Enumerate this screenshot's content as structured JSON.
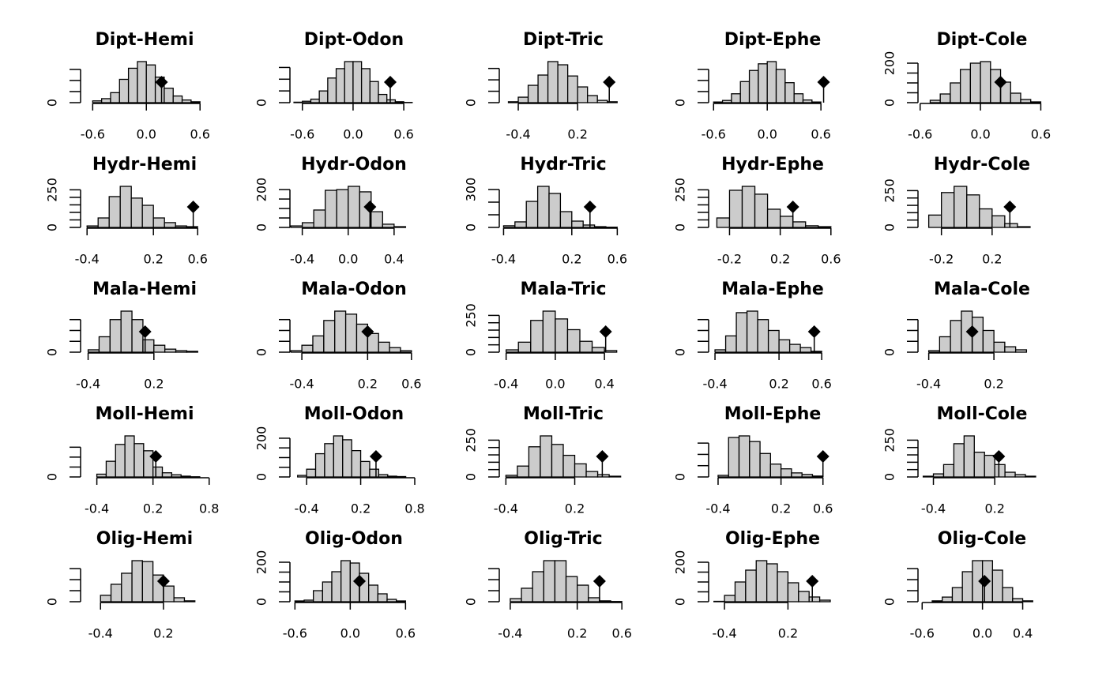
{
  "chart_data": [
    {
      "type": "histogram",
      "title": "Dipt-Hemi",
      "bins": [
        -0.6,
        -0.5,
        -0.4,
        -0.3,
        -0.2,
        -0.1,
        0,
        0.1,
        0.2,
        0.3,
        0.4,
        0.5,
        0.6
      ],
      "counts": [
        8,
        18,
        45,
        105,
        155,
        185,
        170,
        115,
        65,
        30,
        12,
        4
      ],
      "xlim": [
        -0.7,
        0.66
      ],
      "xticks": [
        -0.6,
        {
          "value": 0,
          "label": "0.0"
        },
        0.6
      ],
      "ylim": [
        0,
        185
      ],
      "yticks": [
        0
      ],
      "yminor": [
        50,
        100,
        150
      ],
      "observed": 0.17,
      "color": "#cccccc",
      "marker_color": "#000000"
    },
    {
      "type": "histogram",
      "title": "Dipt-Odon",
      "bins": [
        -0.7,
        -0.6,
        -0.5,
        -0.4,
        -0.3,
        -0.2,
        -0.1,
        0,
        0.1,
        0.2,
        0.3,
        0.4,
        0.5,
        0.6,
        0.7
      ],
      "counts": [
        2,
        6,
        15,
        50,
        105,
        145,
        175,
        175,
        145,
        90,
        35,
        12,
        4,
        1
      ],
      "xlim": [
        -0.71,
        0.73
      ],
      "xticks": [
        -0.6,
        {
          "value": 0,
          "label": "0.0"
        },
        0.6
      ],
      "ylim": [
        0,
        175
      ],
      "yticks": [
        0
      ],
      "yminor": [
        50,
        100,
        150
      ],
      "observed": 0.44,
      "color": "#cccccc",
      "marker_color": "#000000"
    },
    {
      "type": "histogram",
      "title": "Dipt-Tric",
      "bins": [
        -0.5,
        -0.4,
        -0.3,
        -0.2,
        -0.1,
        0,
        0.1,
        0.2,
        0.3,
        0.4,
        0.5,
        0.6
      ],
      "counts": [
        4,
        24,
        76,
        121,
        180,
        166,
        117,
        69,
        31,
        10,
        4
      ],
      "xlim": [
        -0.56,
        0.67
      ],
      "xticks": [
        -0.4,
        0.2
      ],
      "ylim": [
        0,
        180
      ],
      "yticks": [
        0
      ],
      "yminor": [
        50,
        100,
        150
      ],
      "observed": 0.52,
      "color": "#cccccc",
      "marker_color": "#000000"
    },
    {
      "type": "histogram",
      "title": "Dipt-Ephe",
      "bins": [
        -0.6,
        -0.5,
        -0.4,
        -0.3,
        -0.2,
        -0.1,
        0,
        0.1,
        0.2,
        0.3,
        0.4,
        0.5,
        0.6
      ],
      "counts": [
        3,
        10,
        40,
        95,
        145,
        175,
        185,
        150,
        90,
        40,
        12,
        3
      ],
      "xlim": [
        -0.62,
        0.74
      ],
      "xticks": [
        -0.6,
        {
          "value": 0,
          "label": "0.0"
        },
        0.6
      ],
      "ylim": [
        0,
        185
      ],
      "yticks": [
        0
      ],
      "yminor": [
        50,
        100,
        150
      ],
      "observed": 0.63,
      "color": "#cccccc",
      "marker_color": "#000000"
    },
    {
      "type": "histogram",
      "title": "Dipt-Cole",
      "bins": [
        -0.5,
        -0.4,
        -0.3,
        -0.2,
        -0.1,
        0,
        0.1,
        0.2,
        0.3,
        0.4,
        0.5,
        0.6
      ],
      "counts": [
        12,
        44,
        100,
        168,
        200,
        208,
        168,
        104,
        48,
        16,
        4
      ],
      "xlim": [
        -0.59,
        0.62
      ],
      "xticks": [
        -0.6,
        {
          "value": 0,
          "label": "0.0"
        },
        0.6
      ],
      "ylim": [
        0,
        208
      ],
      "yticks": [
        0,
        200
      ],
      "yminor": [
        50,
        100,
        150
      ],
      "observed": 0.2,
      "color": "#cccccc",
      "marker_color": "#000000"
    },
    {
      "type": "histogram",
      "title": "Hydr-Hemi",
      "bins": [
        -0.4,
        -0.3,
        -0.2,
        -0.1,
        0,
        0.1,
        0.2,
        0.3,
        0.4,
        0.5,
        0.6
      ],
      "counts": [
        10,
        63,
        205,
        273,
        195,
        147,
        63,
        32,
        10,
        5
      ],
      "xlim": [
        -0.43,
        0.67
      ],
      "xticks": [
        -0.4,
        0.2,
        0.6
      ],
      "ylim": [
        0,
        273
      ],
      "yticks": [
        0,
        250
      ],
      "yminor": [
        50,
        100,
        150,
        200
      ],
      "observed": 0.56,
      "color": "#cccccc",
      "marker_color": "#000000"
    },
    {
      "type": "histogram",
      "title": "Hydr-Odon",
      "bins": [
        -0.5,
        -0.4,
        -0.3,
        -0.2,
        -0.1,
        0,
        0.1,
        0.2,
        0.3,
        0.4,
        0.5
      ],
      "counts": [
        8,
        25,
        92,
        196,
        200,
        217,
        188,
        83,
        17,
        4
      ],
      "xlim": [
        -0.48,
        0.58
      ],
      "xticks": [
        -0.4,
        {
          "value": 0,
          "label": "0.0"
        },
        0.4
      ],
      "ylim": [
        0,
        217
      ],
      "yticks": [
        0,
        200
      ],
      "yminor": [
        50,
        100,
        150
      ],
      "observed": 0.19,
      "color": "#cccccc",
      "marker_color": "#000000"
    },
    {
      "type": "histogram",
      "title": "Hydr-Tric",
      "bins": [
        -0.4,
        -0.3,
        -0.2,
        -0.1,
        0,
        0.1,
        0.2,
        0.3,
        0.4,
        0.5,
        0.6
      ],
      "counts": [
        13,
        44,
        206,
        325,
        269,
        125,
        50,
        19,
        6,
        2
      ],
      "xlim": [
        -0.41,
        0.66
      ],
      "xticks": [
        -0.4,
        0.2,
        0.6
      ],
      "ylim": [
        0,
        325
      ],
      "yticks": [
        0,
        300
      ],
      "yminor": [
        100,
        200
      ],
      "observed": 0.36,
      "color": "#cccccc",
      "marker_color": "#000000"
    },
    {
      "type": "histogram",
      "title": "Hydr-Ephe",
      "bins": [
        -0.3,
        -0.2,
        -0.1,
        0,
        0.1,
        0.2,
        0.3,
        0.4,
        0.5,
        0.6
      ],
      "counts": [
        63,
        247,
        273,
        221,
        121,
        74,
        37,
        11,
        5
      ],
      "xlim": [
        -0.34,
        0.62
      ],
      "xticks": [
        -0.2,
        0.2,
        0.6
      ],
      "ylim": [
        0,
        273
      ],
      "yticks": [
        0,
        250
      ],
      "yminor": [
        50,
        100,
        150,
        200
      ],
      "observed": 0.3,
      "color": "#cccccc",
      "marker_color": "#000000"
    },
    {
      "type": "histogram",
      "title": "Hydr-Cole",
      "bins": [
        -0.3,
        -0.2,
        -0.1,
        0,
        0.1,
        0.2,
        0.3,
        0.4,
        0.5
      ],
      "counts": [
        84,
        237,
        279,
        221,
        126,
        79,
        26,
        5
      ],
      "xlim": [
        -0.36,
        0.6
      ],
      "xticks": [
        -0.2,
        0.2
      ],
      "ylim": [
        0,
        279
      ],
      "yticks": [
        0,
        250
      ],
      "yminor": [
        50,
        100,
        150,
        200
      ],
      "observed": 0.34,
      "color": "#cccccc",
      "marker_color": "#000000"
    },
    {
      "type": "histogram",
      "title": "Mala-Hemi",
      "bins": [
        -0.4,
        -0.3,
        -0.2,
        -0.1,
        0,
        0.1,
        0.2,
        0.3,
        0.4,
        0.5,
        0.6
      ],
      "counts": [
        11,
        71,
        150,
        189,
        150,
        57,
        32,
        14,
        7,
        4
      ],
      "xlim": [
        -0.44,
        0.67
      ],
      "xticks": [
        -0.4,
        0.2
      ],
      "ylim": [
        0,
        189
      ],
      "yticks": [
        0
      ],
      "yminor": [
        50,
        100,
        150
      ],
      "observed": 0.12,
      "color": "#cccccc",
      "marker_color": "#000000"
    },
    {
      "type": "histogram",
      "title": "Mala-Odon",
      "bins": [
        -0.5,
        -0.4,
        -0.3,
        -0.2,
        -0.1,
        0,
        0.1,
        0.2,
        0.3,
        0.4,
        0.5,
        0.6
      ],
      "counts": [
        7,
        32,
        75,
        146,
        189,
        175,
        129,
        86,
        46,
        21,
        7
      ],
      "xlim": [
        -0.48,
        0.63
      ],
      "xticks": [
        -0.4,
        0.2,
        0.6
      ],
      "ylim": [
        0,
        189
      ],
      "yticks": [
        0
      ],
      "yminor": [
        50,
        100,
        150
      ],
      "observed": 0.2,
      "color": "#cccccc",
      "marker_color": "#000000"
    },
    {
      "type": "histogram",
      "title": "Mala-Tric",
      "bins": [
        -0.4,
        -0.3,
        -0.2,
        -0.1,
        0,
        0.1,
        0.2,
        0.3,
        0.4,
        0.5
      ],
      "counts": [
        16,
        68,
        216,
        279,
        226,
        153,
        74,
        32,
        11
      ],
      "xlim": [
        -0.43,
        0.56
      ],
      "xticks": [
        -0.4,
        {
          "value": 0,
          "label": "0.0"
        },
        0.4
      ],
      "ylim": [
        0,
        279
      ],
      "yticks": [
        0,
        250
      ],
      "yminor": [
        50,
        100,
        150,
        200
      ],
      "observed": 0.41,
      "color": "#cccccc",
      "marker_color": "#000000"
    },
    {
      "type": "histogram",
      "title": "Mala-Ephe",
      "bins": [
        -0.4,
        -0.3,
        -0.2,
        -0.1,
        0,
        0.1,
        0.2,
        0.3,
        0.4,
        0.5,
        0.6
      ],
      "counts": [
        11,
        75,
        182,
        189,
        150,
        100,
        57,
        36,
        21,
        4
      ],
      "xlim": [
        -0.43,
        0.71
      ],
      "xticks": [
        -0.4,
        0.2,
        0.6
      ],
      "ylim": [
        0,
        189
      ],
      "yticks": [
        0
      ],
      "yminor": [
        50,
        100,
        150
      ],
      "observed": 0.53,
      "color": "#cccccc",
      "marker_color": "#000000"
    },
    {
      "type": "histogram",
      "title": "Mala-Cole",
      "bins": [
        -0.4,
        -0.3,
        -0.2,
        -0.1,
        0,
        0.1,
        0.2,
        0.3,
        0.4,
        0.5
      ],
      "counts": [
        7,
        71,
        146,
        189,
        161,
        100,
        46,
        25,
        11
      ],
      "xlim": [
        -0.47,
        0.65
      ],
      "xticks": [
        -0.4,
        0.2
      ],
      "ylim": [
        0,
        189
      ],
      "yticks": [
        0
      ],
      "yminor": [
        50,
        100,
        150
      ],
      "observed": 0.0,
      "color": "#cccccc",
      "marker_color": "#000000"
    },
    {
      "type": "histogram",
      "title": "Moll-Hemi",
      "bins": [
        -0.4,
        -0.3,
        -0.2,
        -0.1,
        0,
        0.1,
        0.2,
        0.3,
        0.4,
        0.5,
        0.6,
        0.7
      ],
      "counts": [
        14,
        79,
        164,
        207,
        168,
        132,
        50,
        21,
        11,
        4,
        1
      ],
      "xlim": [
        -0.54,
        0.76
      ],
      "xticks": [
        -0.4,
        0.2,
        0.8
      ],
      "ylim": [
        0,
        207
      ],
      "yticks": [
        0
      ],
      "yminor": [
        50,
        100,
        150
      ],
      "observed": 0.23,
      "color": "#cccccc",
      "marker_color": "#000000"
    },
    {
      "type": "histogram",
      "title": "Moll-Odon",
      "bins": [
        -0.5,
        -0.4,
        -0.3,
        -0.2,
        -0.1,
        0,
        0.1,
        0.2,
        0.3,
        0.4,
        0.5,
        0.6,
        0.7
      ],
      "counts": [
        8,
        40,
        120,
        172,
        212,
        192,
        136,
        80,
        40,
        12,
        4,
        2
      ],
      "xlim": [
        -0.55,
        0.8
      ],
      "xticks": [
        -0.4,
        0.2,
        0.8
      ],
      "ylim": [
        0,
        212
      ],
      "yticks": [
        0,
        200
      ],
      "yminor": [
        50,
        100,
        150
      ],
      "observed": 0.37,
      "color": "#cccccc",
      "marker_color": "#000000"
    },
    {
      "type": "histogram",
      "title": "Moll-Tric",
      "bins": [
        -0.4,
        -0.3,
        -0.2,
        -0.1,
        0,
        0.1,
        0.2,
        0.3,
        0.4,
        0.5,
        0.6
      ],
      "counts": [
        11,
        74,
        205,
        279,
        221,
        147,
        89,
        37,
        16,
        5
      ],
      "xlim": [
        -0.43,
        0.63
      ],
      "xticks": [
        -0.4,
        0.2
      ],
      "ylim": [
        0,
        279
      ],
      "yticks": [
        0,
        250
      ],
      "yminor": [
        50,
        100,
        150,
        200
      ],
      "observed": 0.44,
      "color": "#cccccc",
      "marker_color": "#000000"
    },
    {
      "type": "histogram",
      "title": "Moll-Ephe",
      "bins": [
        -0.4,
        -0.3,
        -0.2,
        -0.1,
        0,
        0.1,
        0.2,
        0.3,
        0.4,
        0.5,
        0.6
      ],
      "counts": [
        7,
        175,
        182,
        157,
        104,
        57,
        36,
        18,
        11,
        4
      ],
      "xlim": [
        -0.46,
        0.7
      ],
      "xticks": [
        -0.4,
        0.2,
        0.6
      ],
      "ylim": [
        0,
        182
      ],
      "yticks": [
        0
      ],
      "yminor": [
        50,
        100,
        150
      ],
      "observed": 0.6,
      "color": "#cccccc",
      "marker_color": "#000000"
    },
    {
      "type": "histogram",
      "title": "Moll-Cole",
      "bins": [
        -0.5,
        -0.4,
        -0.3,
        -0.2,
        -0.1,
        0,
        0.1,
        0.2,
        0.3,
        0.4,
        0.5,
        0.6
      ],
      "counts": [
        5,
        21,
        84,
        226,
        279,
        168,
        147,
        84,
        32,
        16,
        5
      ],
      "xlim": [
        -0.52,
        0.67
      ],
      "xticks": [
        -0.4,
        0.2
      ],
      "ylim": [
        0,
        279
      ],
      "yticks": [
        0,
        250
      ],
      "yminor": [
        50,
        100,
        150,
        200
      ],
      "observed": 0.24,
      "color": "#cccccc",
      "marker_color": "#000000"
    },
    {
      "type": "histogram",
      "title": "Olig-Hemi",
      "bins": [
        -0.4,
        -0.3,
        -0.2,
        -0.1,
        0,
        0.1,
        0.2,
        0.3,
        0.4,
        0.5
      ],
      "counts": [
        29,
        79,
        129,
        186,
        182,
        121,
        71,
        18,
        4
      ],
      "xlim": [
        -0.56,
        0.6
      ],
      "xticks": [
        -0.4,
        0.2
      ],
      "ylim": [
        0,
        186
      ],
      "yticks": [
        0
      ],
      "yminor": [
        50,
        100,
        150
      ],
      "observed": 0.2,
      "color": "#cccccc",
      "marker_color": "#000000"
    },
    {
      "type": "histogram",
      "title": "Olig-Odon",
      "bins": [
        -0.6,
        -0.5,
        -0.4,
        -0.3,
        -0.2,
        -0.1,
        0,
        0.1,
        0.2,
        0.3,
        0.4,
        0.5,
        0.6
      ],
      "counts": [
        4,
        8,
        56,
        100,
        152,
        208,
        196,
        144,
        84,
        40,
        12,
        4
      ],
      "xlim": [
        -0.62,
        0.7
      ],
      "xticks": [
        -0.6,
        {
          "value": 0,
          "label": "0.0"
        },
        0.6
      ],
      "ylim": [
        0,
        208
      ],
      "yticks": [
        0,
        200
      ],
      "yminor": [
        50,
        100,
        150
      ],
      "observed": 0.1,
      "color": "#cccccc",
      "marker_color": "#000000"
    },
    {
      "type": "histogram",
      "title": "Olig-Tric",
      "bins": [
        -0.4,
        -0.3,
        -0.2,
        -0.1,
        0,
        0.1,
        0.2,
        0.3,
        0.4,
        0.5,
        0.6
      ],
      "counts": [
        14,
        61,
        136,
        186,
        186,
        114,
        75,
        18,
        4,
        1
      ],
      "xlim": [
        -0.47,
        0.62
      ],
      "xticks": [
        -0.4,
        0.2,
        0.6
      ],
      "ylim": [
        0,
        186
      ],
      "yticks": [
        0
      ],
      "yminor": [
        50,
        100,
        150
      ],
      "observed": 0.4,
      "color": "#cccccc",
      "marker_color": "#000000"
    },
    {
      "type": "histogram",
      "title": "Olig-Ephe",
      "bins": [
        -0.5,
        -0.4,
        -0.3,
        -0.2,
        -0.1,
        0,
        0.1,
        0.2,
        0.3,
        0.4,
        0.5,
        0.6
      ],
      "counts": [
        2,
        32,
        100,
        160,
        208,
        192,
        152,
        96,
        52,
        24,
        8
      ],
      "xlim": [
        -0.52,
        0.63
      ],
      "xticks": [
        -0.4,
        0.2
      ],
      "ylim": [
        0,
        208
      ],
      "yticks": [
        0,
        200
      ],
      "yminor": [
        50,
        100,
        150
      ],
      "observed": 0.43,
      "color": "#cccccc",
      "marker_color": "#000000"
    },
    {
      "type": "histogram",
      "title": "Olig-Cole",
      "bins": [
        -0.5,
        -0.4,
        -0.3,
        -0.2,
        -0.1,
        0,
        0.1,
        0.2,
        0.3,
        0.4,
        0.5
      ],
      "counts": [
        4,
        21,
        64,
        136,
        186,
        186,
        143,
        64,
        14,
        4
      ],
      "xlim": [
        -0.61,
        0.6
      ],
      "xticks": [
        -0.6,
        {
          "value": 0,
          "label": "0.0"
        },
        0.4
      ],
      "ylim": [
        0,
        186
      ],
      "yticks": [
        0
      ],
      "yminor": [
        50,
        100,
        150
      ],
      "observed": 0.02,
      "color": "#cccccc",
      "marker_color": "#000000"
    }
  ]
}
